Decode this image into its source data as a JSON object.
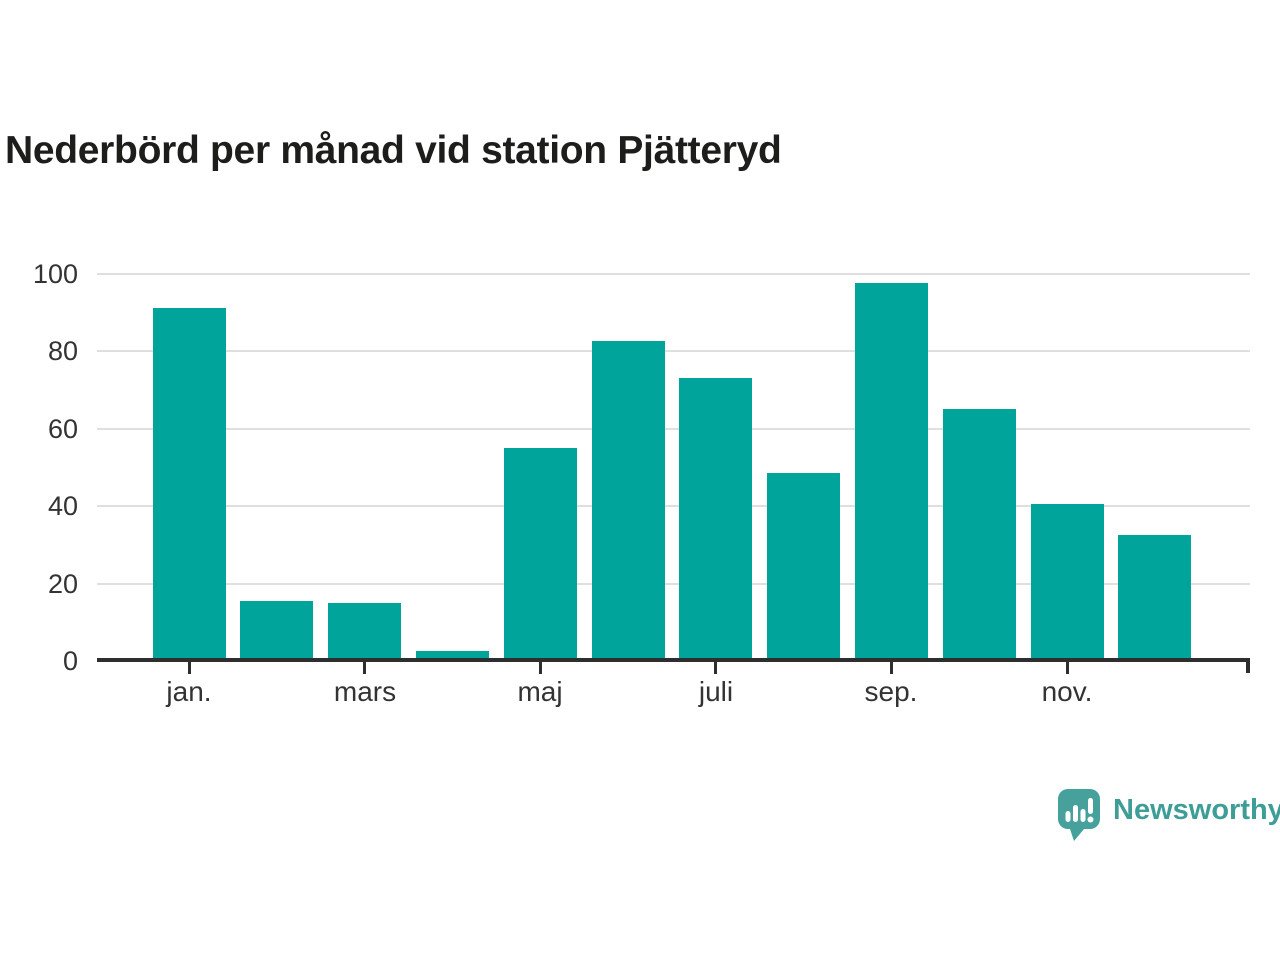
{
  "title": "Nederbörd per månad vid station Pjätteryd",
  "chart_data": {
    "type": "bar",
    "title": "Nederbörd per månad vid station Pjätteryd",
    "xlabel": "",
    "ylabel": "",
    "ylim": [
      0,
      100
    ],
    "yticks": [
      0,
      20,
      40,
      60,
      80,
      100
    ],
    "n_bars": 12,
    "values": [
      91,
      15.5,
      15,
      2.5,
      55,
      82.5,
      73,
      48.5,
      97.5,
      65,
      40.5,
      32.5
    ],
    "xticks": [
      {
        "bar_index": 0,
        "label": "jan."
      },
      {
        "bar_index": 2,
        "label": "mars"
      },
      {
        "bar_index": 4,
        "label": "maj"
      },
      {
        "bar_index": 6,
        "label": "juli"
      },
      {
        "bar_index": 8,
        "label": "sep."
      },
      {
        "bar_index": 10,
        "label": "nov."
      }
    ],
    "grid": "horizontal-light",
    "legend": "none",
    "bar_color": "#00a49b"
  },
  "branding": {
    "logo_text": "Newsworthy",
    "logo_color": "#3f9d98",
    "logo_icon_color": "#46a09b",
    "logo_icon": "newsworthy-speech-bubble-bar-chart-icon"
  },
  "colors": {
    "background": "#ffffff",
    "title_text": "#1d1d1b",
    "tick_text": "#333333",
    "gridline": "#dfdfdf",
    "axis_line": "#2e2e2e"
  }
}
